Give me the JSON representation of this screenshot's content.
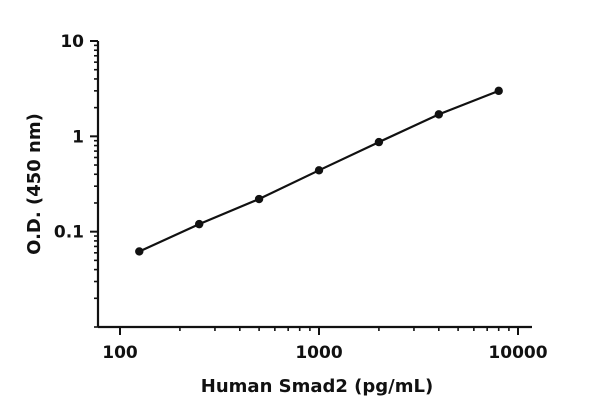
{
  "chart_data": {
    "type": "scatter",
    "xlabel": "Human Smad2 (pg/mL)",
    "ylabel": "O.D. (450 nm)",
    "x_scale": "log",
    "y_scale": "log",
    "xlim": [
      100,
      10000
    ],
    "ylim": [
      0.01,
      10
    ],
    "x_ticks": [
      {
        "value": 100,
        "label": "100"
      },
      {
        "value": 1000,
        "label": "1000"
      },
      {
        "value": 10000,
        "label": "10000"
      }
    ],
    "y_ticks": [
      {
        "value": 0.1,
        "label": "0.1"
      },
      {
        "value": 1,
        "label": "1"
      },
      {
        "value": 10,
        "label": "10"
      }
    ],
    "grid": false,
    "series": [
      {
        "x": [
          125,
          250,
          500,
          1000,
          2000,
          4000,
          8000
        ],
        "y": [
          0.062,
          0.12,
          0.22,
          0.44,
          0.87,
          1.7,
          3.0
        ],
        "fit_line": true
      }
    ]
  }
}
